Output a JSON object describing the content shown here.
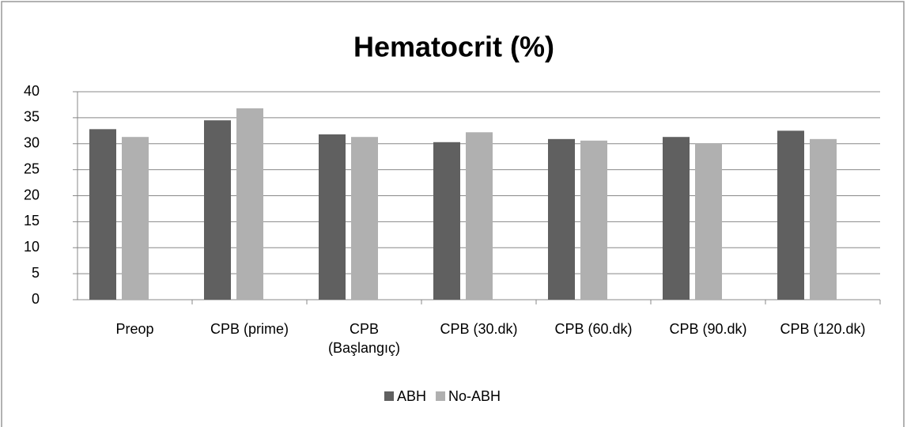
{
  "chart_data": {
    "type": "bar",
    "title": "Hematocrit (%)",
    "categories": [
      "Preop",
      "CPB (prime)",
      "CPB (Başlangıç)",
      "CPB (30.dk)",
      "CPB (60.dk)",
      "CPB (90.dk)",
      "CPB (120.dk)"
    ],
    "series": [
      {
        "name": "ABH",
        "color": "#606060",
        "values": [
          32.8,
          34.5,
          31.8,
          30.3,
          30.9,
          31.3,
          32.5
        ]
      },
      {
        "name": "No-ABH",
        "color": "#b0b0b0",
        "values": [
          31.3,
          36.8,
          31.3,
          32.2,
          30.6,
          30.1,
          30.9
        ]
      }
    ],
    "ylim": [
      0,
      40
    ],
    "yticks": [
      0,
      5,
      10,
      15,
      20,
      25,
      30,
      35,
      40
    ],
    "grid": true,
    "legend": "bottom"
  }
}
